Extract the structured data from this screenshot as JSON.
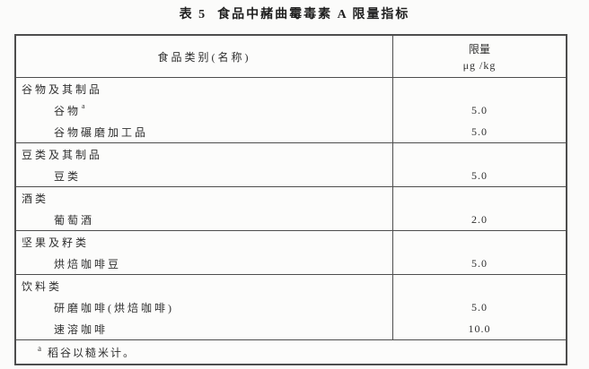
{
  "title": {
    "prefix": "表 5",
    "text": "食品中赭曲霉毒素 A 限量指标"
  },
  "table": {
    "header": {
      "category": "食品类别(名称)",
      "limit_line1": "限量",
      "limit_line2": "μg /kg"
    },
    "sections": [
      {
        "rows": [
          {
            "type": "category",
            "label": "谷物及其制品",
            "value": ""
          },
          {
            "type": "item",
            "label": "谷物",
            "sup": "a",
            "value": "5.0"
          },
          {
            "type": "item",
            "label": "谷物碾磨加工品",
            "value": "5.0"
          }
        ]
      },
      {
        "rows": [
          {
            "type": "category",
            "label": "豆类及其制品",
            "value": ""
          },
          {
            "type": "item",
            "label": "豆类",
            "value": "5.0"
          }
        ]
      },
      {
        "rows": [
          {
            "type": "category",
            "label": "酒类",
            "value": ""
          },
          {
            "type": "item",
            "label": "葡萄酒",
            "value": "2.0"
          }
        ]
      },
      {
        "rows": [
          {
            "type": "category",
            "label": "坚果及籽类",
            "value": ""
          },
          {
            "type": "item",
            "label": "烘焙咖啡豆",
            "value": "5.0"
          }
        ]
      },
      {
        "rows": [
          {
            "type": "category",
            "label": "饮料类",
            "value": ""
          },
          {
            "type": "item",
            "label": "研磨咖啡(烘焙咖啡)",
            "value": "5.0"
          },
          {
            "type": "item",
            "label": "速溶咖啡",
            "value": "10.0"
          }
        ]
      }
    ],
    "footnote": {
      "marker": "a",
      "text": "稻谷以糙米计。"
    },
    "colors": {
      "border": "#4d4d4d",
      "text": "#2e2e2e",
      "background": "#fbfbfa"
    }
  }
}
